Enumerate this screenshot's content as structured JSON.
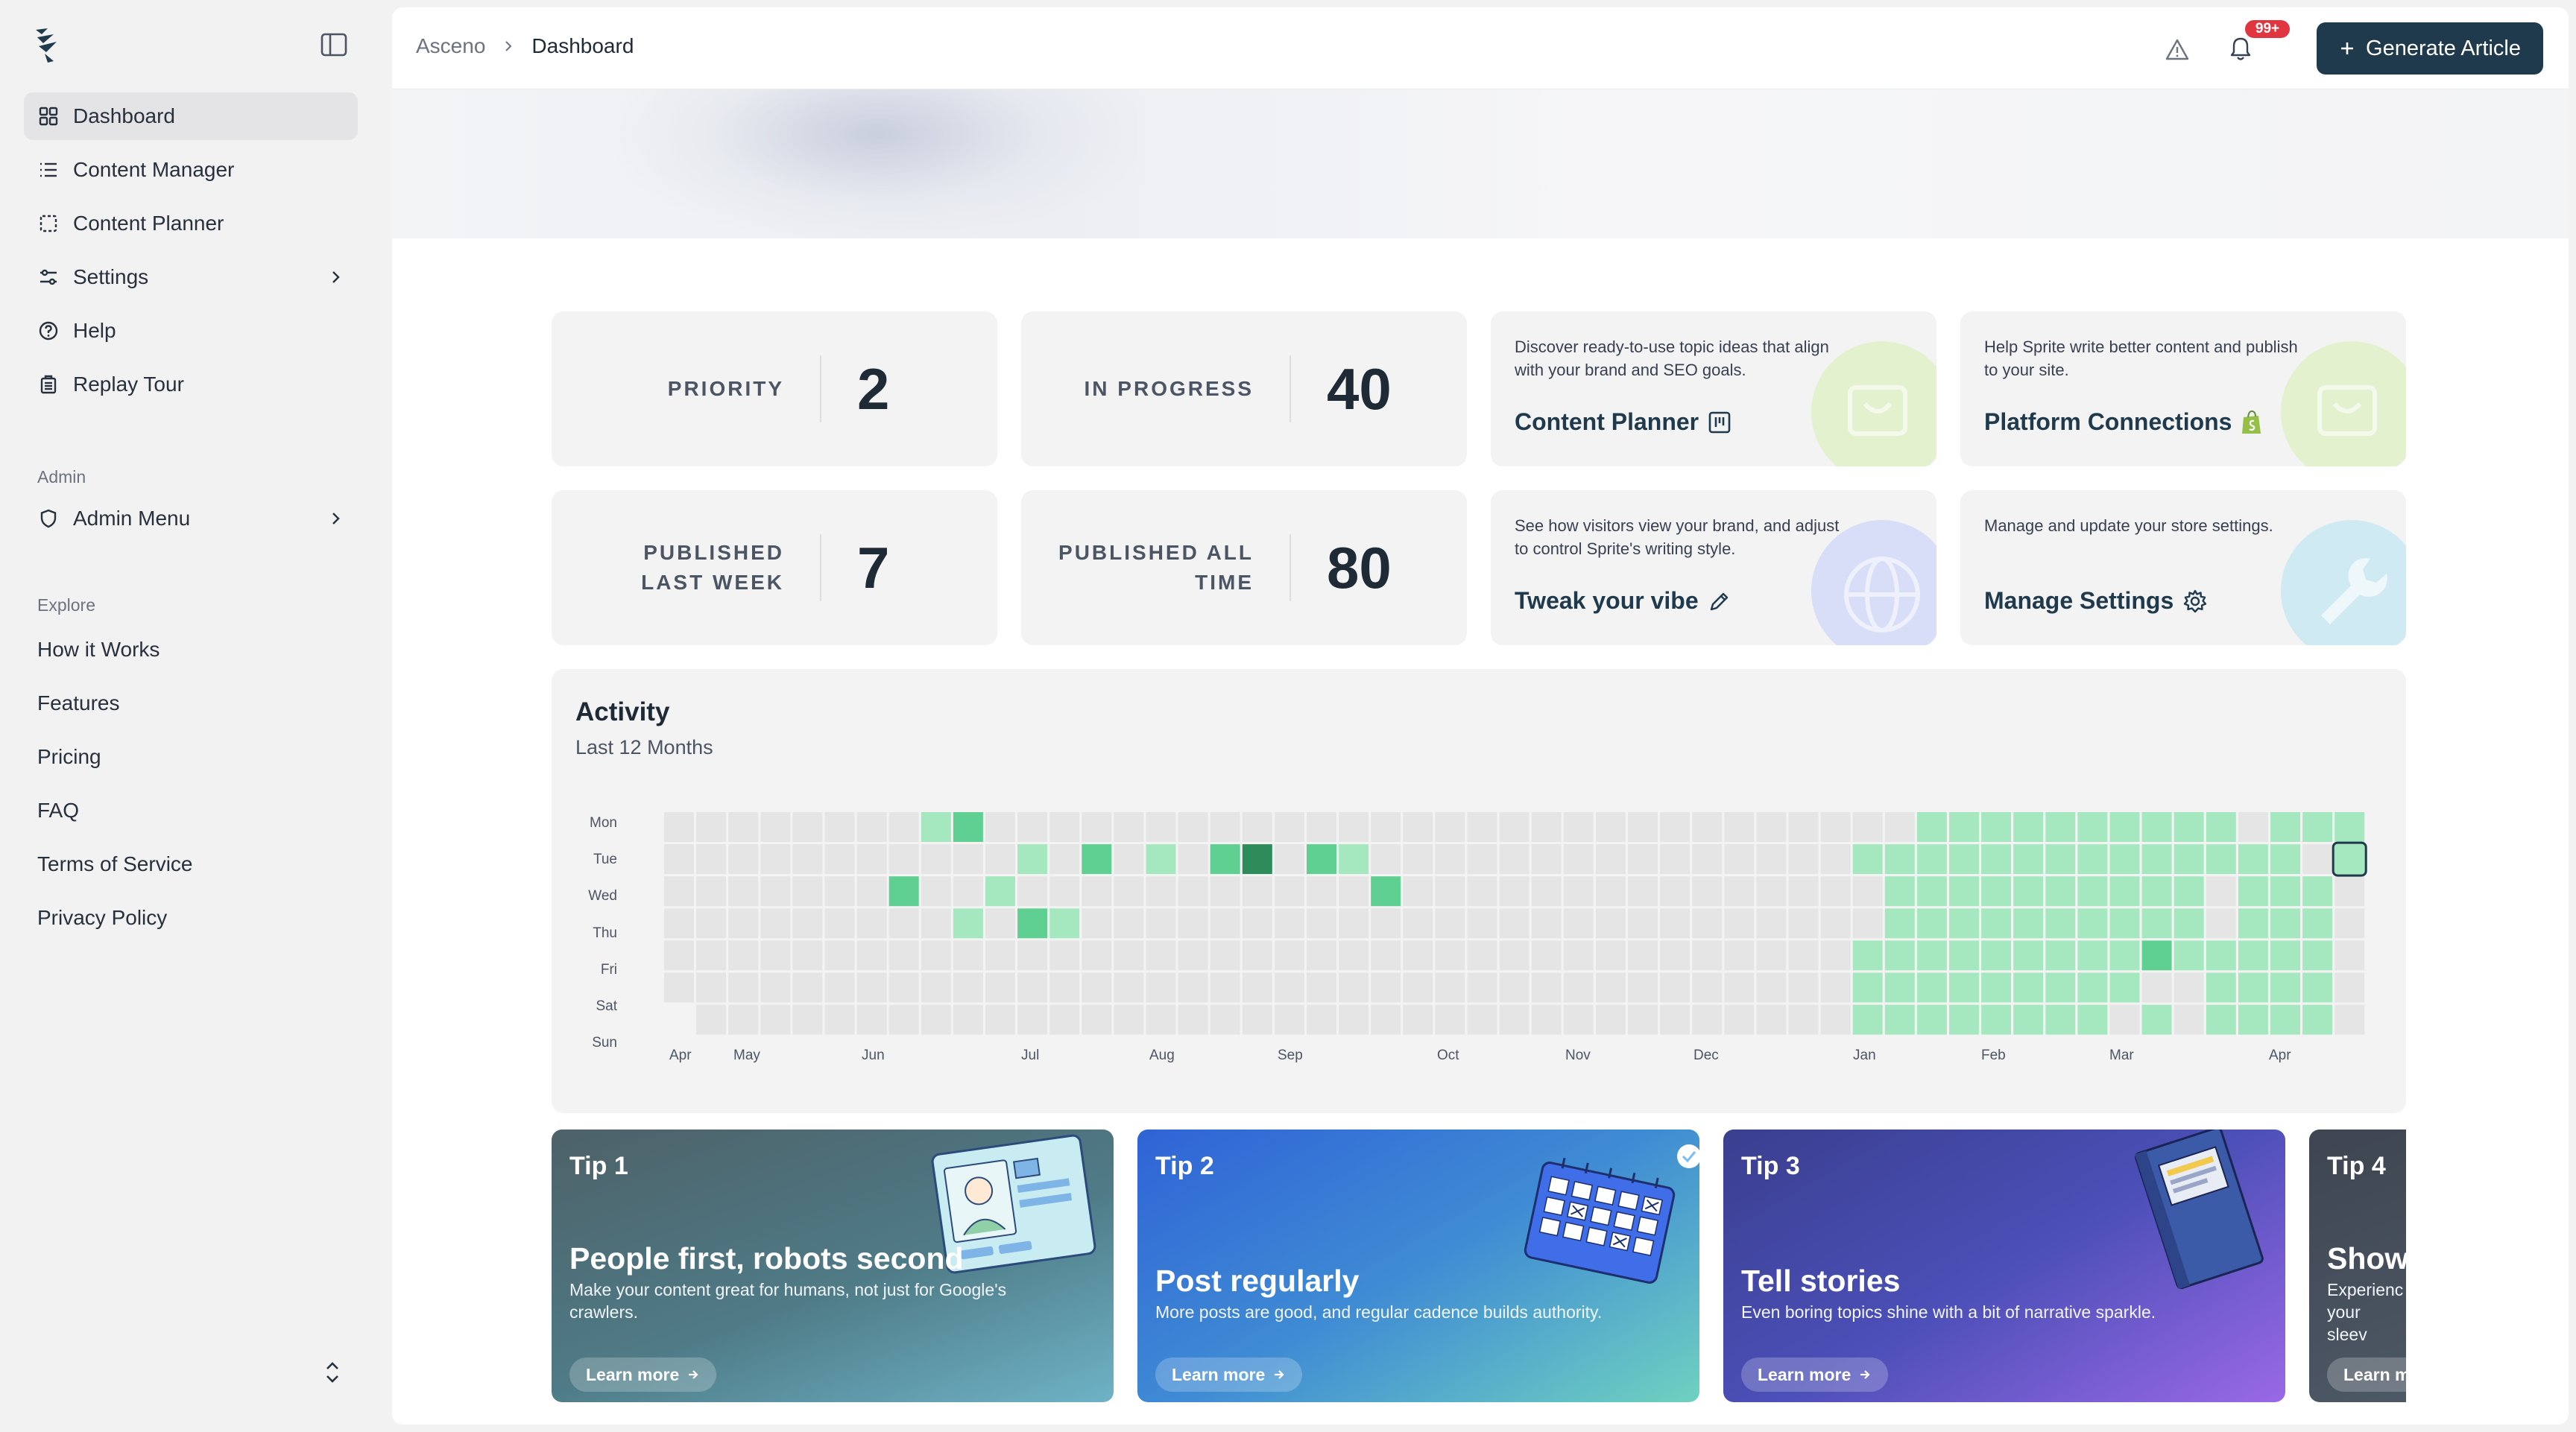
{
  "sidebar": {
    "nav": [
      {
        "label": "Dashboard",
        "icon": "dashboard-icon"
      },
      {
        "label": "Content Manager",
        "icon": "list-icon"
      },
      {
        "label": "Content Planner",
        "icon": "planner-icon"
      },
      {
        "label": "Settings",
        "icon": "sliders-icon"
      },
      {
        "label": "Help",
        "icon": "help-icon"
      },
      {
        "label": "Replay Tour",
        "icon": "tour-icon"
      }
    ],
    "admin_label": "Admin",
    "admin_menu": "Admin Menu",
    "explore_label": "Explore",
    "explore": [
      "How it Works",
      "Features",
      "Pricing",
      "FAQ",
      "Terms of Service",
      "Privacy Policy"
    ]
  },
  "header": {
    "crumb_root": "Asceno",
    "crumb_current": "Dashboard",
    "badge": "99+",
    "generate_label": "Generate Article"
  },
  "stats": {
    "priority_label": "PRIORITY",
    "priority": "2",
    "in_progress_label": "IN PROGRESS",
    "in_progress": "40",
    "pub_week_label_1": "PUBLISHED",
    "pub_week_label_2": "LAST WEEK",
    "pub_week": "7",
    "pub_all_label_1": "PUBLISHED ALL",
    "pub_all_label_2": "TIME",
    "pub_all": "80"
  },
  "cards": {
    "planner_desc": "Discover ready-to-use topic ideas that align with your brand and SEO goals.",
    "planner_title": "Content Planner",
    "conn_desc": "Help Sprite write better content and publish to your site.",
    "conn_title": "Platform Connections",
    "vibe_desc": "See how visitors view your brand, and adjust to control Sprite's writing style.",
    "vibe_title": "Tweak your vibe",
    "settings_desc": "Manage and update your store settings.",
    "settings_title": "Manage Settings"
  },
  "activity": {
    "title": "Activity",
    "subtitle": "Last 12 Months",
    "days": [
      "Mon",
      "Tue",
      "Wed",
      "Thu",
      "Fri",
      "Sat",
      "Sun"
    ],
    "months": [
      "Apr",
      "May",
      "Jun",
      "Jul",
      "Aug",
      "Sep",
      "Oct",
      "Nov",
      "Dec",
      "Jan",
      "Feb",
      "Mar",
      "Apr"
    ],
    "colors": {
      "empty": "#e5e5e6",
      "light": "#a5e8c0",
      "mid": "#5fcf92",
      "dark": "#2e8c5a"
    }
  },
  "tips": [
    {
      "num": "Tip 1",
      "title": "People first, robots second",
      "body": "Make your content great for humans, not just for Google's crawlers.",
      "cta": "Learn more"
    },
    {
      "num": "Tip 2",
      "title": "Post regularly",
      "body": "More posts are good, and regular cadence builds authority.",
      "cta": "Learn more"
    },
    {
      "num": "Tip 3",
      "title": "Tell stories",
      "body": "Even boring topics shine with a bit of narrative sparkle.",
      "cta": "Learn more"
    },
    {
      "num": "Tip 4",
      "title": "Show",
      "body": "Experienc your sleev",
      "cta": "Learn m"
    }
  ]
}
